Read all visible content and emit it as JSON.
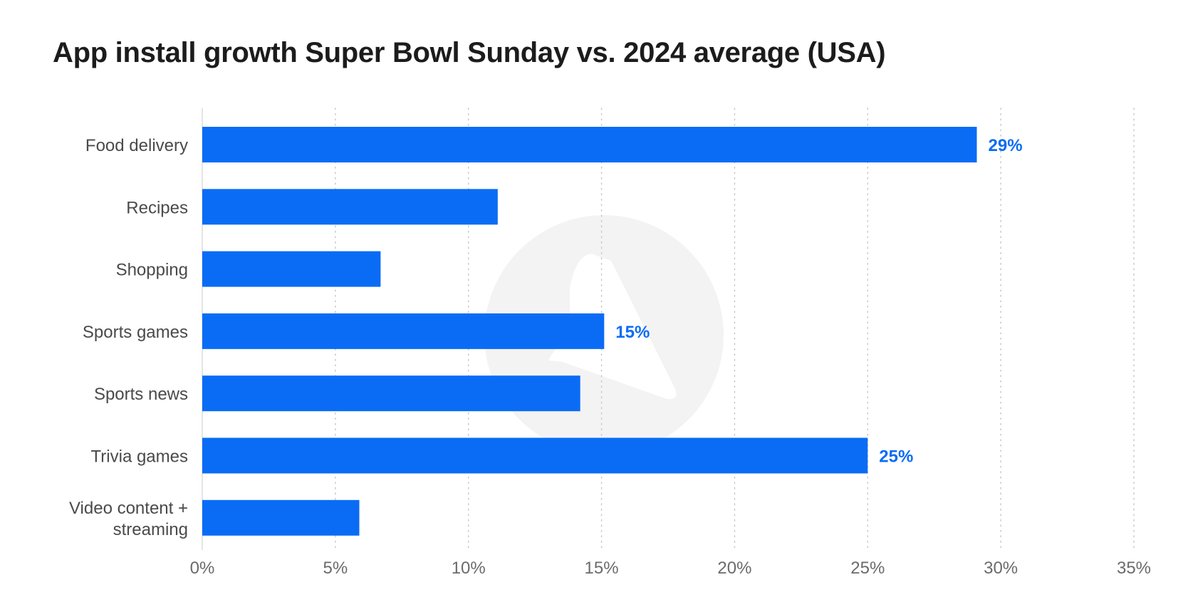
{
  "colors": {
    "bar": "#0a6cf5",
    "label": "#0a6cf5",
    "title": "#1c1c1c",
    "grid": "#c8c8c8",
    "watermark": "#f3f3f3"
  },
  "chart_data": {
    "type": "bar",
    "orientation": "horizontal",
    "title": "App install growth Super Bowl Sunday vs. 2024 average (USA)",
    "xlabel": "",
    "ylabel": "",
    "categories": [
      [
        "Food delivery"
      ],
      [
        "Recipes"
      ],
      [
        "Shopping"
      ],
      [
        "Sports games"
      ],
      [
        "Sports news"
      ],
      [
        "Trivia games"
      ],
      [
        "Video content +",
        "streaming"
      ]
    ],
    "values": [
      29.1,
      11.1,
      6.7,
      15.1,
      14.2,
      25.0,
      5.9
    ],
    "data_labels": [
      "29%",
      "",
      "",
      "15%",
      "",
      "25%",
      ""
    ],
    "xlim": [
      0,
      35
    ],
    "xticks": [
      0,
      5,
      10,
      15,
      20,
      25,
      30,
      35
    ],
    "xtick_labels": [
      "0%",
      "5%",
      "10%",
      "15%",
      "20%",
      "25%",
      "30%",
      "35%"
    ],
    "grid": "vertical dotted",
    "legend": "none"
  }
}
